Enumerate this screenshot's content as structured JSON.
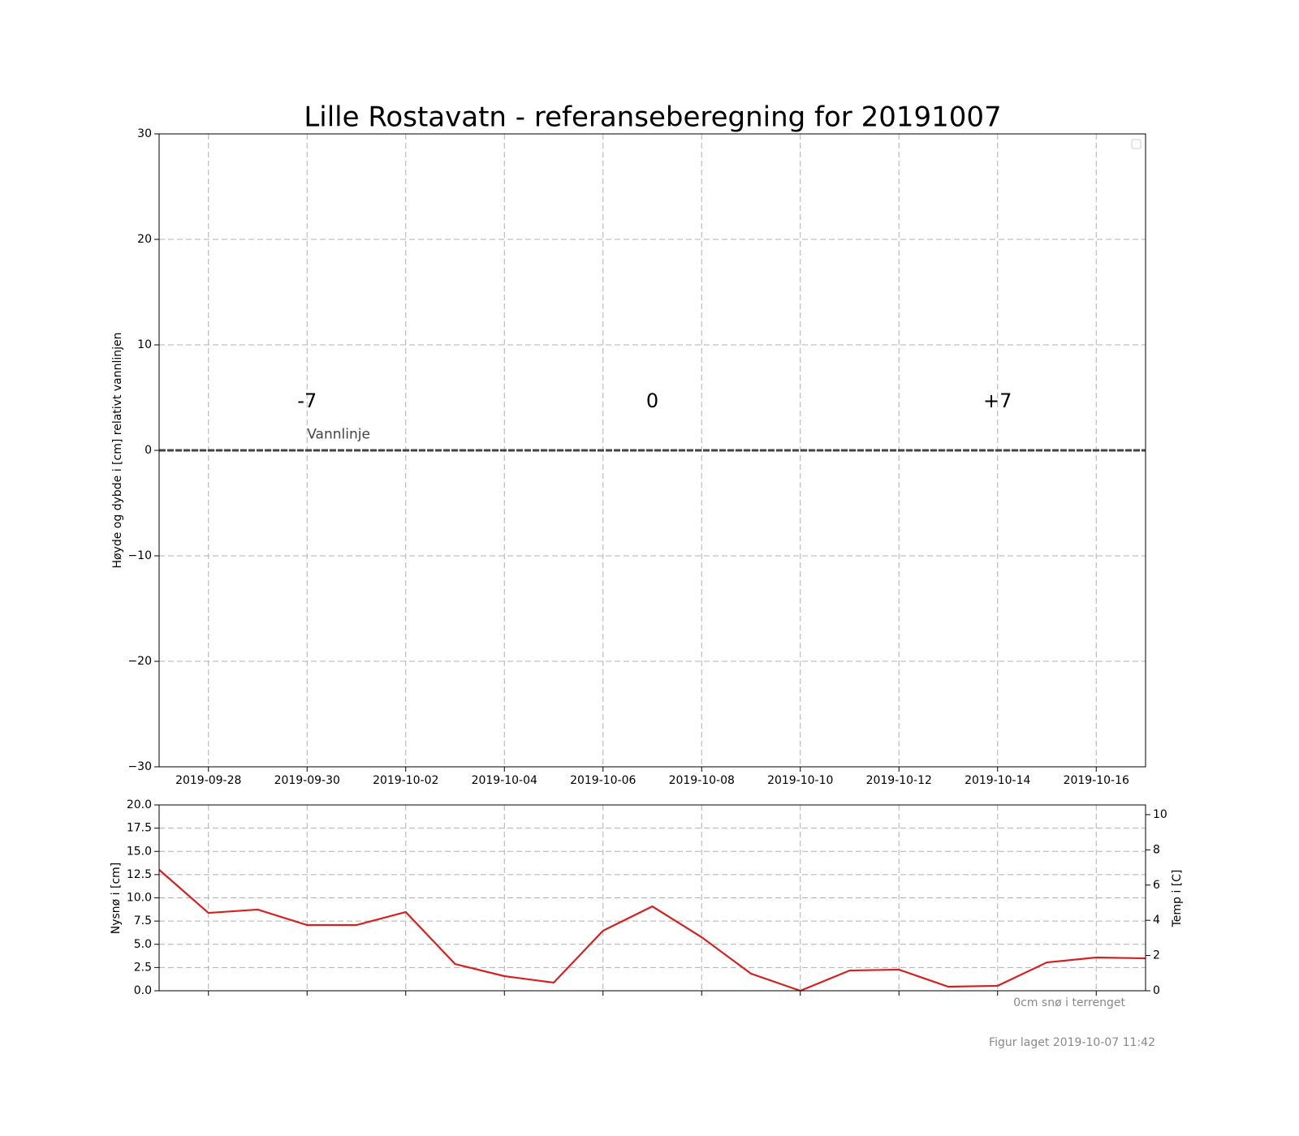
{
  "chart_data": [
    {
      "type": "line",
      "title": "Lille Rostavatn - referanseberegning for 20191007",
      "ylabel": "Høyde og dybde i [cm] relativt vannlinjen",
      "xlim": [
        "2019-09-27",
        "2019-10-17"
      ],
      "xticks": [
        "2019-09-28",
        "2019-09-30",
        "2019-10-02",
        "2019-10-04",
        "2019-10-06",
        "2019-10-08",
        "2019-10-10",
        "2019-10-12",
        "2019-10-14",
        "2019-10-16"
      ],
      "ylim": [
        -30,
        30
      ],
      "yticks": [
        -30,
        -20,
        -10,
        0,
        10,
        20,
        30
      ],
      "grid": true,
      "hlines": [
        {
          "y": 0,
          "label": "Vannlinje",
          "label_x": "2019-09-30",
          "label_y": 1.5,
          "color": "#444444"
        }
      ],
      "annotations": [
        {
          "x": "2019-09-30",
          "y": 4.6,
          "text": "-7"
        },
        {
          "x": "2019-10-07",
          "y": 4.6,
          "text": "0"
        },
        {
          "x": "2019-10-14",
          "y": 4.6,
          "text": "+7"
        }
      ]
    },
    {
      "type": "line",
      "ylabel": "Nysnø i [cm]",
      "y2label": "Temp i [C]",
      "xlim": [
        "2019-09-27",
        "2019-10-17"
      ],
      "xticks": [
        "2019-09-28",
        "2019-09-30",
        "2019-10-02",
        "2019-10-04",
        "2019-10-06",
        "2019-10-08",
        "2019-10-10",
        "2019-10-12",
        "2019-10-14",
        "2019-10-16"
      ],
      "ylim": [
        0,
        20
      ],
      "yticks": [
        {
          "value": 0,
          "label": "0.0"
        },
        2.5,
        {
          "value": 5,
          "label": "5.0"
        },
        7.5,
        {
          "value": 10,
          "label": "10.0"
        },
        12.5,
        {
          "value": 15,
          "label": "15.0"
        },
        17.5,
        {
          "value": 20,
          "label": "20.0"
        }
      ],
      "y2lim": [
        0,
        10.55
      ],
      "y2ticks": [
        0,
        2,
        4,
        6,
        8,
        10
      ],
      "grid": true,
      "x": [
        "2019-09-27",
        "2019-09-28",
        "2019-09-29",
        "2019-09-30",
        "2019-10-01",
        "2019-10-02",
        "2019-10-03",
        "2019-10-04",
        "2019-10-05",
        "2019-10-06",
        "2019-10-07",
        "2019-10-08",
        "2019-10-09",
        "2019-10-10",
        "2019-10-11",
        "2019-10-12",
        "2019-10-13",
        "2019-10-14",
        "2019-10-15",
        "2019-10-16",
        "2019-10-17"
      ],
      "series": [
        {
          "color": "#d62020",
          "axis": "y2",
          "values": [
            6.87,
            4.42,
            4.61,
            3.73,
            3.73,
            4.47,
            1.52,
            0.83,
            0.46,
            3.41,
            4.79,
            3.04,
            0.97,
            0.0,
            1.15,
            1.2,
            0.23,
            0.28,
            1.61,
            1.89,
            1.84
          ]
        }
      ],
      "note": "0cm snø i terrenget",
      "footer": "Figur laget 2019-10-07 11:42"
    }
  ]
}
